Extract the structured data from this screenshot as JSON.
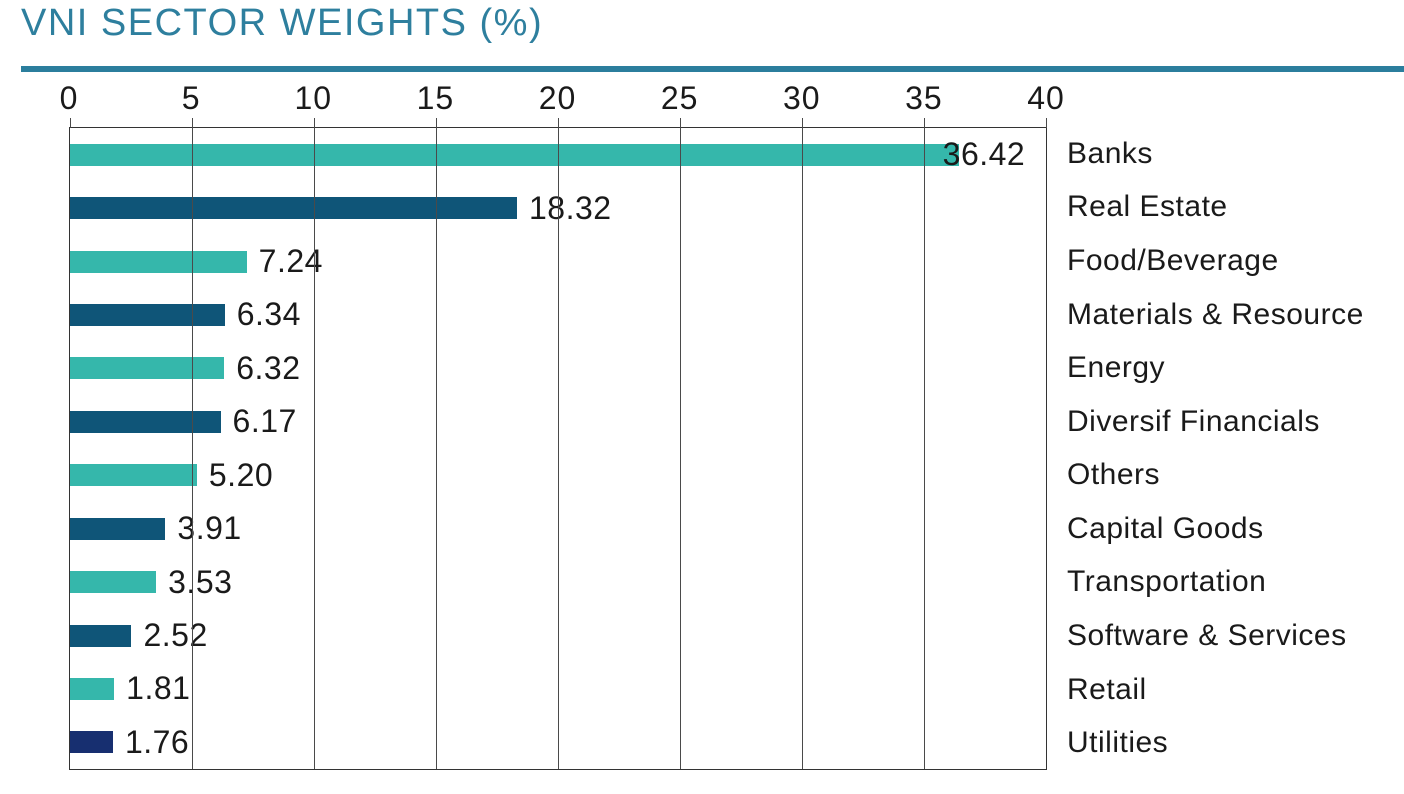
{
  "title": "VNI SECTOR WEIGHTS (%)",
  "theme": {
    "title_color": "#2e7f9e",
    "rule_color": "#2b7e9d",
    "teal_bar_color": "#35b7ab",
    "dark_blue_bar_color": "#0f5578",
    "navy_bar_color": "#172f70",
    "text_color": "#1a1a1a",
    "grid_color": "#4a4a4a"
  },
  "chart_data": {
    "type": "bar",
    "orientation": "horizontal",
    "title": "VNI SECTOR WEIGHTS (%)",
    "xlabel": "",
    "ylabel": "",
    "xlim": [
      0,
      40
    ],
    "x_ticks": [
      0,
      5,
      10,
      15,
      20,
      25,
      30,
      35,
      40
    ],
    "grid": true,
    "value_labels_position": "end-of-bar",
    "category_labels_position": "right",
    "categories": [
      "Banks",
      "Real Estate",
      "Food/Beverage",
      "Materials & Resource",
      "Energy",
      "Diversif Financials",
      "Others",
      "Capital Goods",
      "Transportation",
      "Software & Services",
      "Retail",
      "Utilities"
    ],
    "values": [
      36.42,
      18.32,
      7.24,
      6.34,
      6.32,
      6.17,
      5.2,
      3.91,
      3.53,
      2.52,
      1.81,
      1.76
    ],
    "display_values": [
      "36.42",
      "18.32",
      "7.24",
      "6.34",
      "6.32",
      "6.17",
      "5.20",
      "3.91",
      "3.53",
      "2.52",
      "1.81",
      "1.76"
    ],
    "bar_colors": [
      "#35b7ab",
      "#0f5578",
      "#35b7ab",
      "#0f5578",
      "#35b7ab",
      "#0f5578",
      "#35b7ab",
      "#0f5578",
      "#35b7ab",
      "#0f5578",
      "#35b7ab",
      "#172f70"
    ]
  }
}
